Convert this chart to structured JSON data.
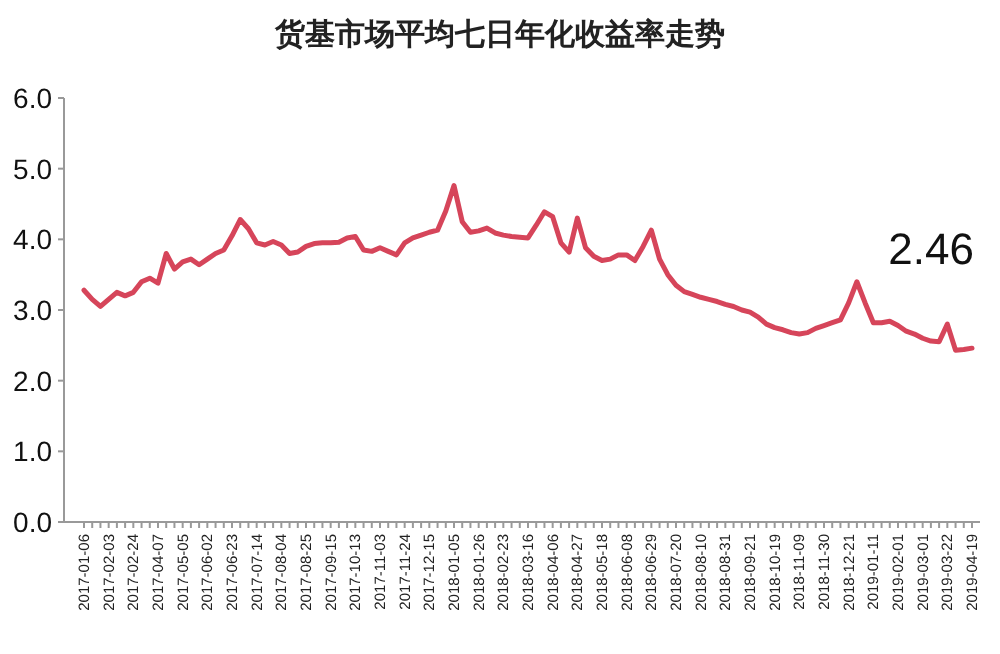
{
  "chart_data": {
    "type": "line",
    "title": "货基市场平均七日年化收益率走势",
    "categories": [
      "2017-01-06",
      null,
      null,
      "2017-02-03",
      null,
      null,
      "2017-02-24",
      null,
      null,
      "2017-04-07",
      null,
      null,
      "2017-05-05",
      null,
      null,
      "2017-06-02",
      null,
      null,
      "2017-06-23",
      null,
      null,
      "2017-07-14",
      null,
      null,
      "2017-08-04",
      null,
      null,
      "2017-08-25",
      null,
      null,
      "2017-09-15",
      null,
      null,
      "2017-10-13",
      null,
      null,
      "2017-11-03",
      null,
      null,
      "2017-11-24",
      null,
      null,
      "2017-12-15",
      null,
      null,
      "2018-01-05",
      null,
      null,
      "2018-01-26",
      null,
      null,
      "2018-02-23",
      null,
      null,
      "2018-03-16",
      null,
      null,
      "2018-04-06",
      null,
      null,
      "2018-04-27",
      null,
      null,
      "2018-05-18",
      null,
      null,
      "2018-06-08",
      null,
      null,
      "2018-06-29",
      null,
      null,
      "2018-07-20",
      null,
      null,
      "2018-08-10",
      null,
      null,
      "2018-08-31",
      null,
      null,
      "2018-09-21",
      null,
      null,
      "2018-10-19",
      null,
      null,
      "2018-11-09",
      null,
      null,
      "2018-11-30",
      null,
      null,
      "2018-12-21",
      null,
      null,
      "2019-01-11",
      null,
      null,
      "2019-02-01",
      null,
      null,
      "2019-03-01",
      null,
      null,
      "2019-03-22",
      null,
      null,
      "2019-04-19"
    ],
    "series": [
      {
        "color": "#d6455a",
        "values": [
          3.28,
          3.15,
          3.05,
          3.15,
          3.25,
          3.2,
          3.25,
          3.4,
          3.45,
          3.38,
          3.8,
          3.58,
          3.68,
          3.72,
          3.64,
          3.72,
          3.8,
          3.85,
          4.05,
          4.28,
          4.15,
          3.95,
          3.92,
          3.97,
          3.92,
          3.8,
          3.82,
          3.9,
          3.94,
          3.95,
          3.95,
          3.96,
          4.02,
          4.04,
          3.85,
          3.83,
          3.88,
          3.83,
          3.78,
          3.95,
          4.02,
          4.06,
          4.1,
          4.13,
          4.4,
          4.76,
          4.25,
          4.1,
          4.12,
          4.16,
          4.09,
          4.06,
          4.04,
          4.03,
          4.02,
          4.2,
          4.39,
          4.32,
          3.95,
          3.82,
          4.3,
          3.88,
          3.76,
          3.7,
          3.72,
          3.78,
          3.78,
          3.7,
          3.9,
          4.13,
          3.72,
          3.5,
          3.35,
          3.26,
          3.22,
          3.18,
          3.15,
          3.12,
          3.08,
          3.05,
          3.0,
          2.97,
          2.9,
          2.8,
          2.75,
          2.72,
          2.68,
          2.66,
          2.68,
          2.74,
          2.78,
          2.82,
          2.86,
          3.1,
          3.4,
          3.1,
          2.82,
          2.82,
          2.84,
          2.78,
          2.7,
          2.66,
          2.6,
          2.56,
          2.55,
          2.8,
          2.43,
          2.44,
          2.46
        ]
      }
    ],
    "ylim": [
      0,
      6
    ],
    "yticks": [
      {
        "value": 0,
        "label": "0.0"
      },
      {
        "value": 1,
        "label": "1.0"
      },
      {
        "value": 2,
        "label": "2.0"
      },
      {
        "value": 3,
        "label": "3.0"
      },
      {
        "value": 4,
        "label": "4.0"
      },
      {
        "value": 5,
        "label": "5.0"
      },
      {
        "value": 6,
        "label": "6.0"
      }
    ],
    "annotations": [
      {
        "text": "2.46",
        "x": "2019-04-19",
        "y": 2.46
      }
    ],
    "grid": false,
    "marker": "none",
    "line_style": "solid"
  }
}
